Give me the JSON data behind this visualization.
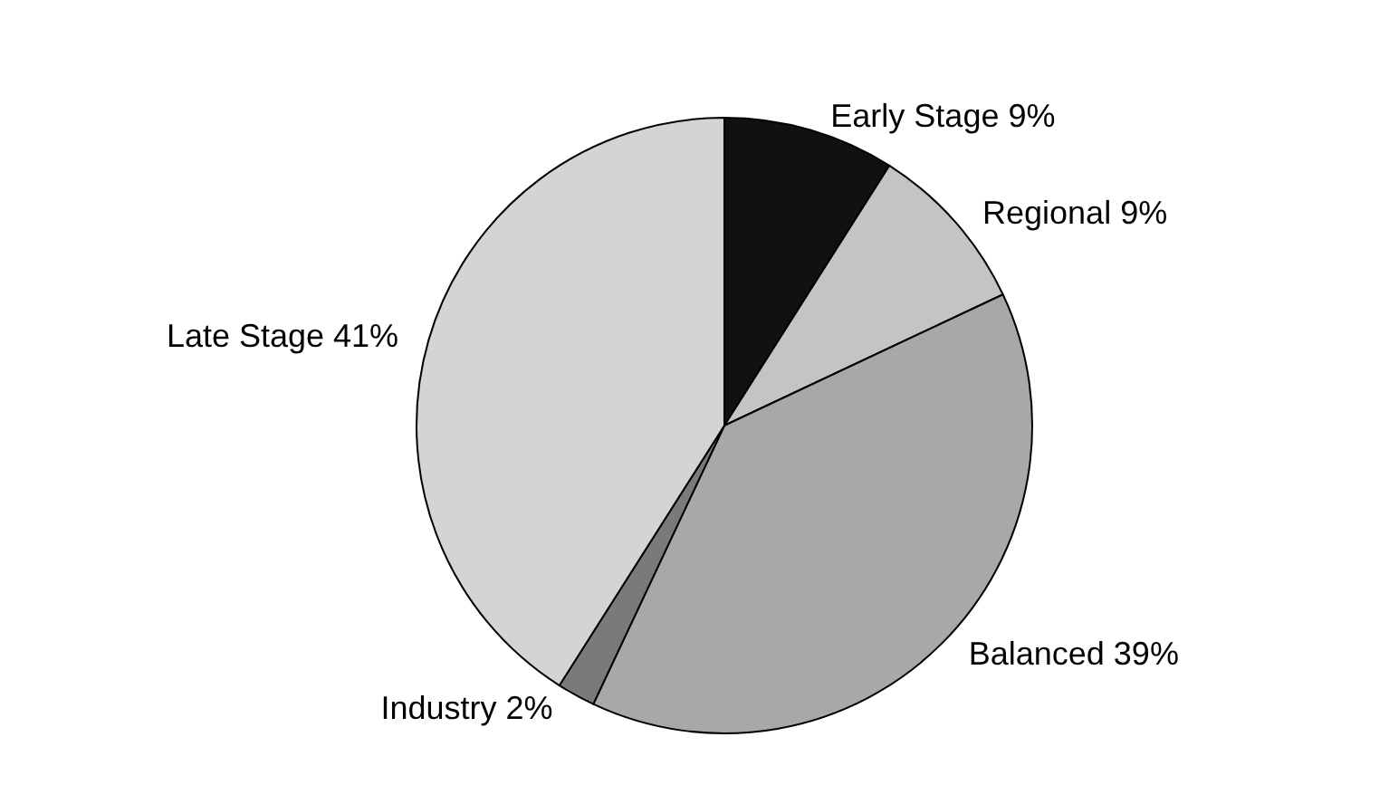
{
  "chart_data": {
    "type": "pie",
    "categories": [
      "Early Stage",
      "Regional",
      "Balanced",
      "Industry",
      "Late Stage"
    ],
    "values": [
      9,
      9,
      39,
      2,
      41
    ],
    "value_labels": [
      "9%",
      "9%",
      "39%",
      "2%",
      "41%"
    ],
    "colors": [
      "#111111",
      "#c4c4c4",
      "#a8a8a8",
      "#7a7a7a",
      "#d4d4d4"
    ],
    "legend": false
  }
}
